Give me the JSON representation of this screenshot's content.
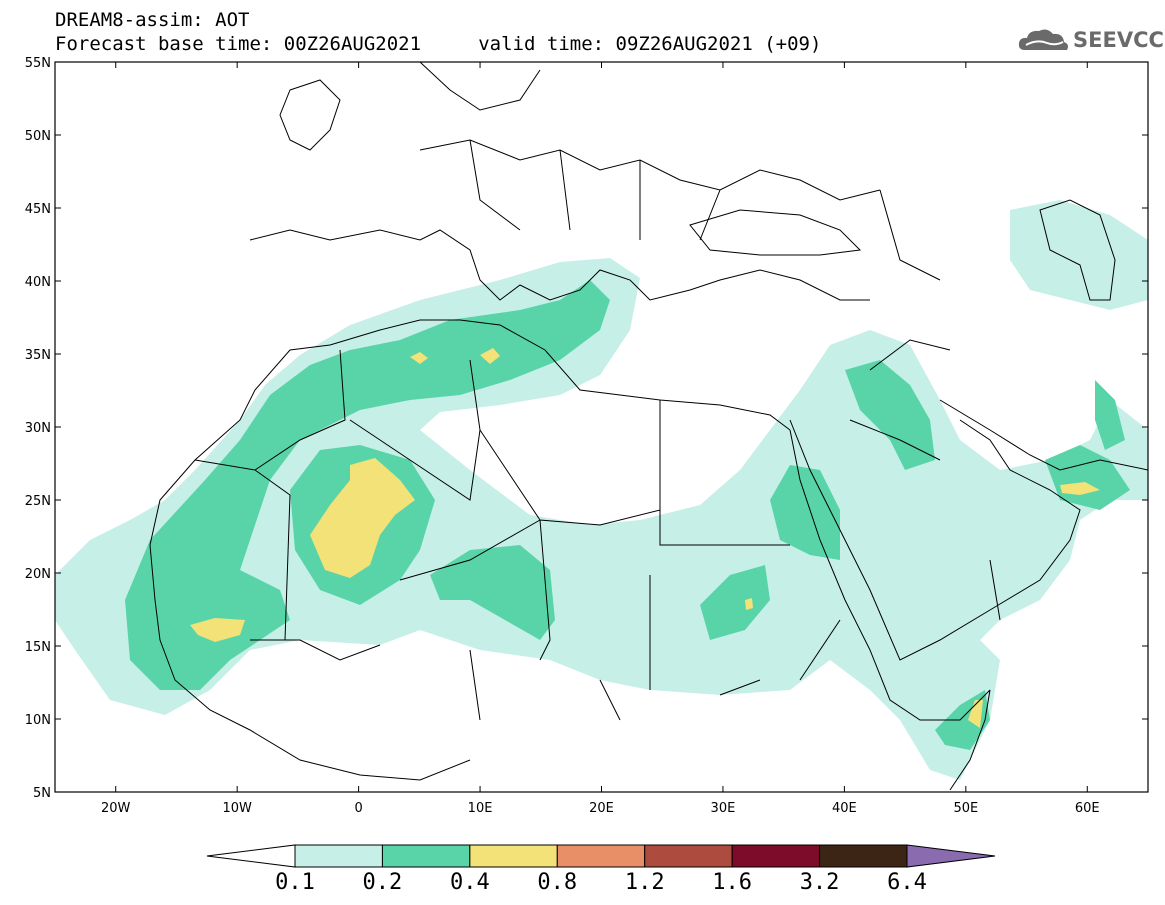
{
  "header": {
    "line1": "DREAM8-assim: AOT",
    "line2": "Forecast base time: 00Z26AUG2021     valid time: 09Z26AUG2021 (+09)",
    "logo_text": "SEEVCCC"
  },
  "map": {
    "lon_range": [
      -25,
      65
    ],
    "lat_range": [
      5,
      55
    ],
    "lat_ticks": [
      "55N",
      "50N",
      "45N",
      "40N",
      "35N",
      "30N",
      "25N",
      "20N",
      "15N",
      "10N",
      "5N"
    ],
    "lon_ticks": [
      "20W",
      "10W",
      "0",
      "10E",
      "20E",
      "30E",
      "40E",
      "50E",
      "60E"
    ]
  },
  "colorbar": {
    "labels": [
      "0.1",
      "0.2",
      "0.4",
      "0.8",
      "1.2",
      "1.6",
      "3.2",
      "6.4"
    ],
    "colors": [
      "#ffffff",
      "#c6efe8",
      "#59d4a8",
      "#f2e278",
      "#e88f68",
      "#ad4c3e",
      "#7d0b2a",
      "#3d2515",
      "#8a6bb0"
    ]
  }
}
